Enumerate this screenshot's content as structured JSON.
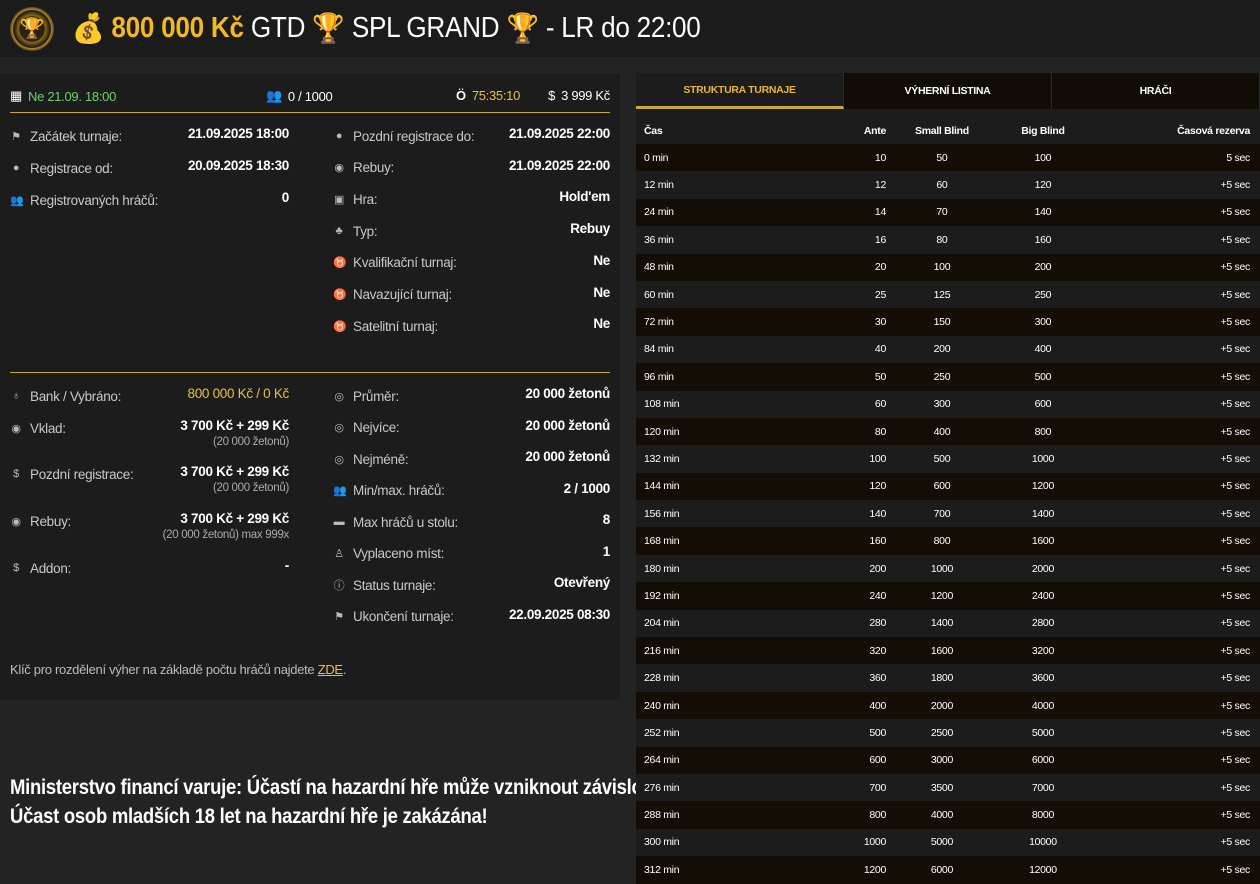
{
  "header": {
    "prize": "800 000 Kč",
    "gtd": "GTD",
    "name": "SPL GRAND",
    "suffix": "- LR do 22:00"
  },
  "topbar": {
    "date": "Ne 21.09. 18:00",
    "players": "0 / 1000",
    "timer": "75:35:10",
    "price": "3 999 Kč",
    "date_color": "#6fd16f",
    "timer_color": "#e8c040"
  },
  "info_left": [
    {
      "icon": "flag-icon",
      "label": "Začátek turnaje:",
      "value": "21.09.2025 18:00"
    },
    {
      "icon": "user-icon",
      "label": "Registrace od:",
      "value": "20.09.2025 18:30"
    },
    {
      "icon": "users-icon",
      "label": "Registrovaných hráčů:",
      "value": "0"
    }
  ],
  "info_right": [
    {
      "icon": "user-icon",
      "label": "Pozdní registrace do:",
      "value": "21.09.2025 22:00"
    },
    {
      "icon": "coins-icon",
      "label": "Rebuy:",
      "value": "21.09.2025 22:00"
    },
    {
      "icon": "cards-icon",
      "label": "Hra:",
      "value": "Hold'em"
    },
    {
      "icon": "suits-icon",
      "label": "Typ:",
      "value": "Rebuy"
    },
    {
      "icon": "medal-icon",
      "label": "Kvalifikační turnaj:",
      "value": "Ne"
    },
    {
      "icon": "medal-icon",
      "label": "Navazující turnaj:",
      "value": "Ne"
    },
    {
      "icon": "medal-icon",
      "label": "Satelitní turnaj:",
      "value": "Ne"
    }
  ],
  "money_left": [
    {
      "icon": "moneybag-icon",
      "label": "Bank / Vybráno:",
      "value": "800 000 Kč / 0 Kč",
      "sub": ""
    },
    {
      "icon": "coins-icon",
      "label": "Vklad:",
      "value": "3 700 Kč + 299 Kč",
      "sub": "(20 000 žetonů)"
    },
    {
      "icon": "dollar-icon",
      "label": "Pozdní registrace:",
      "value": "3 700 Kč + 299 Kč",
      "sub": "(20 000 žetonů)"
    },
    {
      "icon": "coins-icon",
      "label": "Rebuy:",
      "value": "3 700 Kč + 299 Kč",
      "sub": "(20 000 žetonů) max 999x"
    },
    {
      "icon": "dollar-icon",
      "label": "Addon:",
      "value": "-",
      "sub": ""
    }
  ],
  "money_right": [
    {
      "icon": "chip-icon",
      "label": "Průměr:",
      "value": "20 000 žetonů"
    },
    {
      "icon": "chip-icon",
      "label": "Nejvíce:",
      "value": "20 000 žetonů"
    },
    {
      "icon": "chip-icon",
      "label": "Nejméně:",
      "value": "20 000 žetonů"
    },
    {
      "icon": "users-icon",
      "label": "Min/max. hráčů:",
      "value": "2 / 1000"
    },
    {
      "icon": "table-icon",
      "label": "Max hráčů u stolu:",
      "value": "8"
    },
    {
      "icon": "payout-icon",
      "label": "Vyplaceno míst:",
      "value": "1"
    },
    {
      "icon": "info-icon",
      "label": "Status turnaje:",
      "value": "Otevřený"
    },
    {
      "icon": "flag-icon",
      "label": "Ukončení turnaje:",
      "value": "22.09.2025 08:30"
    }
  ],
  "note": {
    "text": "Klíč pro rozdělení výher na základě počtu hráčů najdete ",
    "link": "ZDE",
    "end": "."
  },
  "warning": [
    "Ministerstvo financí varuje: Účastí na hazardní hře může vzniknout závislost!",
    "Účast osob mladších 18 let na hazardní hře je zakázána!"
  ],
  "tabs": [
    "STRUKTURA TURNAJE",
    "VÝHERNÍ LISTINA",
    "HRÁČI"
  ],
  "table": {
    "headers": [
      "Čas",
      "Ante",
      "Small Blind",
      "Big Blind",
      "Časová rezerva"
    ],
    "rows": [
      [
        "0 min",
        "10",
        "50",
        "100",
        "5 sec"
      ],
      [
        "12 min",
        "12",
        "60",
        "120",
        "+5 sec"
      ],
      [
        "24 min",
        "14",
        "70",
        "140",
        "+5 sec"
      ],
      [
        "36 min",
        "16",
        "80",
        "160",
        "+5 sec"
      ],
      [
        "48 min",
        "20",
        "100",
        "200",
        "+5 sec"
      ],
      [
        "60 min",
        "25",
        "125",
        "250",
        "+5 sec"
      ],
      [
        "72 min",
        "30",
        "150",
        "300",
        "+5 sec"
      ],
      [
        "84 min",
        "40",
        "200",
        "400",
        "+5 sec"
      ],
      [
        "96 min",
        "50",
        "250",
        "500",
        "+5 sec"
      ],
      [
        "108 min",
        "60",
        "300",
        "600",
        "+5 sec"
      ],
      [
        "120 min",
        "80",
        "400",
        "800",
        "+5 sec"
      ],
      [
        "132 min",
        "100",
        "500",
        "1000",
        "+5 sec"
      ],
      [
        "144 min",
        "120",
        "600",
        "1200",
        "+5 sec"
      ],
      [
        "156 min",
        "140",
        "700",
        "1400",
        "+5 sec"
      ],
      [
        "168 min",
        "160",
        "800",
        "1600",
        "+5 sec"
      ],
      [
        "180 min",
        "200",
        "1000",
        "2000",
        "+5 sec"
      ],
      [
        "192 min",
        "240",
        "1200",
        "2400",
        "+5 sec"
      ],
      [
        "204 min",
        "280",
        "1400",
        "2800",
        "+5 sec"
      ],
      [
        "216 min",
        "320",
        "1600",
        "3200",
        "+5 sec"
      ],
      [
        "228 min",
        "360",
        "1800",
        "3600",
        "+5 sec"
      ],
      [
        "240 min",
        "400",
        "2000",
        "4000",
        "+5 sec"
      ],
      [
        "252 min",
        "500",
        "2500",
        "5000",
        "+5 sec"
      ],
      [
        "264 min",
        "600",
        "3000",
        "6000",
        "+5 sec"
      ],
      [
        "276 min",
        "700",
        "3500",
        "7000",
        "+5 sec"
      ],
      [
        "288 min",
        "800",
        "4000",
        "8000",
        "+5 sec"
      ],
      [
        "300 min",
        "1000",
        "5000",
        "10000",
        "+5 sec"
      ],
      [
        "312 min",
        "1200",
        "6000",
        "12000",
        "+5 sec"
      ]
    ]
  }
}
